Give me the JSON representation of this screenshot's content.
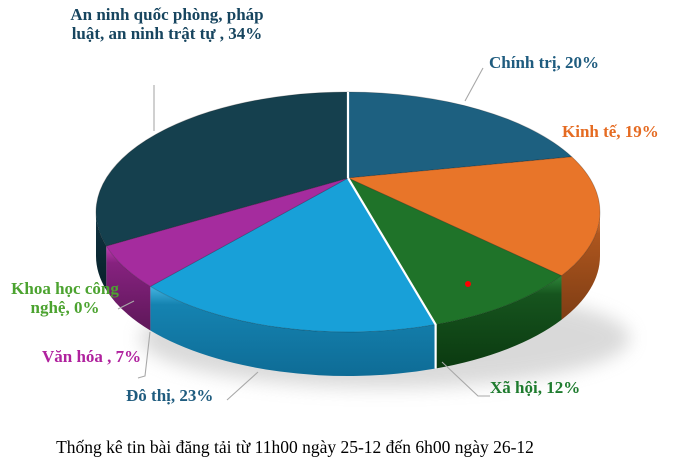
{
  "title": "Thống kê tin bài đăng tải từ 11h00 ngày 25-12 đến 6h00 ngày 26-12",
  "chart_data": {
    "type": "pie",
    "style": "3d",
    "unit": "%",
    "legend_position": "none",
    "labels_on": "callouts",
    "slices": [
      {
        "id": "chinh-tri",
        "label": "Chính trị",
        "value": 20,
        "display": "Chính trị, 20%",
        "color": "#1D6080",
        "rim_highlight": "#2A6E90",
        "rim_top": "#174F6B",
        "rim_bottom": "#0E3A50",
        "label_color": "#1F5C7F"
      },
      {
        "id": "kinh-te",
        "label": "Kinh tế",
        "value": 19,
        "display": "Kinh tế, 19%",
        "color": "#E87529",
        "rim_highlight": "#EF8A46",
        "rim_top": "#AE561E",
        "rim_bottom": "#7E3D14",
        "label_color": "#E56B22"
      },
      {
        "id": "xa-hoi",
        "label": "Xã hội",
        "value": 12,
        "display": "Xã hội, 12%",
        "color": "#1F7329",
        "rim_highlight": "#2E8639",
        "rim_top": "#16541E",
        "rim_bottom": "#0B3A10",
        "label_color": "#1E7B2E"
      },
      {
        "id": "do-thi",
        "label": "Đô thị",
        "value": 23,
        "display": "Đô thị, 23%",
        "color": "#18A0D8",
        "rim_highlight": "#45B5E2",
        "rim_top": "#1583B1",
        "rim_bottom": "#0E6C96",
        "label_color": "#1F5C7F"
      },
      {
        "id": "van-hoa",
        "label": "Văn hóa",
        "value": 7,
        "display": "Văn hóa , 7%",
        "color": "#A52C9E",
        "rim_highlight": "#C43BB6",
        "rim_top": "#86227F",
        "rim_bottom": "#5E1759",
        "label_color": "#B0229E"
      },
      {
        "id": "khcn",
        "label": "Khoa học công nghệ",
        "value": 0,
        "display": "Khoa học công nghệ, 0%",
        "color": "#4CA330",
        "label_color": "#4CA330"
      },
      {
        "id": "anqp",
        "label": "An ninh quốc phòng, pháp luật, an ninh trật tự",
        "value": 34,
        "display": "An ninh quốc phòng, pháp luật, an ninh trật tự , 34%",
        "color": "#15404E",
        "rim_highlight": "#1C5468",
        "rim_top": "#0E303D",
        "rim_bottom": "#082129",
        "label_color": "#17455F"
      }
    ],
    "marker": {
      "color": "#FF0000"
    },
    "leader_color": "#A8A8A8",
    "divider_color": "#FFFFFF"
  }
}
